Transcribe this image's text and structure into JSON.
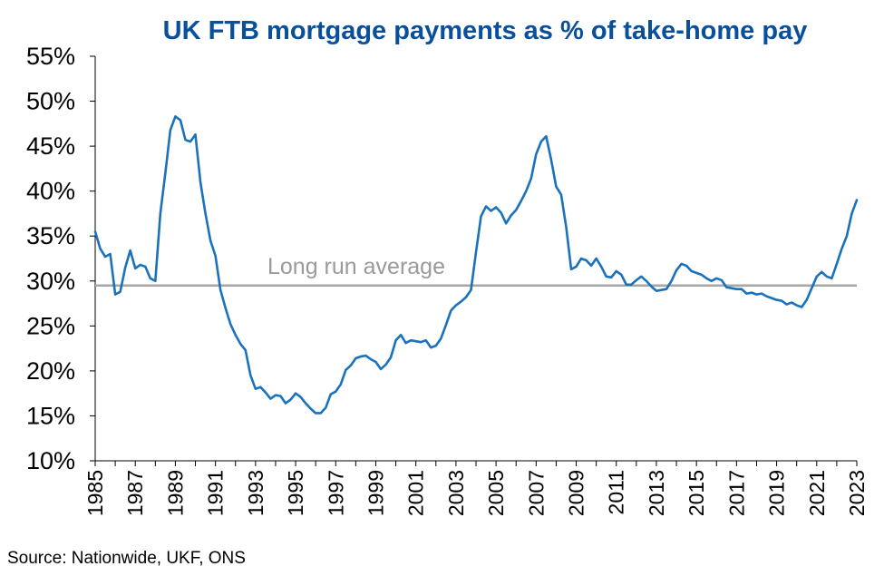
{
  "chart_data": {
    "type": "line",
    "title": "UK FTB mortgage payments as % of take-home pay",
    "source": "Source: Nationwide, UKF, ONS",
    "annotation": "Long run average",
    "average_value": 29.5,
    "xlim": [
      1985,
      2023
    ],
    "ylim": [
      10,
      55
    ],
    "y_ticks": [
      "10%",
      "15%",
      "20%",
      "25%",
      "30%",
      "35%",
      "40%",
      "45%",
      "50%",
      "55%"
    ],
    "y_tick_values": [
      10,
      15,
      20,
      25,
      30,
      35,
      40,
      45,
      50,
      55
    ],
    "x_ticks": [
      "1985",
      "1987",
      "1989",
      "1991",
      "1993",
      "1995",
      "1997",
      "1999",
      "2001",
      "2003",
      "2005",
      "2007",
      "2009",
      "2011",
      "2013",
      "2015",
      "2017",
      "2019",
      "2021",
      "2023"
    ],
    "x_tick_values": [
      1985,
      1987,
      1989,
      1991,
      1993,
      1995,
      1997,
      1999,
      2001,
      2003,
      2005,
      2007,
      2009,
      2011,
      2013,
      2015,
      2017,
      2019,
      2021,
      2023
    ],
    "colors": {
      "series": "#1a72bd",
      "average": "#a6a6a6",
      "title": "#0a4f9a"
    },
    "series": [
      {
        "x": [
          1985.0,
          1985.25,
          1985.5,
          1985.75,
          1986.0,
          1986.25,
          1986.5,
          1986.75,
          1987.0,
          1987.25,
          1987.5,
          1987.75,
          1988.0,
          1988.25,
          1988.5,
          1988.75,
          1989.0,
          1989.25,
          1989.5,
          1989.75,
          1990.0,
          1990.25,
          1990.5,
          1990.75,
          1991.0,
          1991.25,
          1991.5,
          1991.75,
          1992.0,
          1992.25,
          1992.5,
          1992.75,
          1993.0,
          1993.25,
          1993.5,
          1993.75,
          1994.0,
          1994.25,
          1994.5,
          1994.75,
          1995.0,
          1995.25,
          1995.5,
          1995.75,
          1996.0,
          1996.25,
          1996.5,
          1996.75,
          1997.0,
          1997.25,
          1997.5,
          1997.75,
          1998.0,
          1998.25,
          1998.5,
          1998.75,
          1999.0,
          1999.25,
          1999.5,
          1999.75,
          2000.0,
          2000.25,
          2000.5,
          2000.75,
          2001.0,
          2001.25,
          2001.5,
          2001.75,
          2002.0,
          2002.25,
          2002.5,
          2002.75,
          2003.0,
          2003.25,
          2003.5,
          2003.75,
          2004.0,
          2004.25,
          2004.5,
          2004.75,
          2005.0,
          2005.25,
          2005.5,
          2005.75,
          2006.0,
          2006.25,
          2006.5,
          2006.75,
          2007.0,
          2007.25,
          2007.5,
          2007.75,
          2008.0,
          2008.25,
          2008.5,
          2008.75,
          2009.0,
          2009.25,
          2009.5,
          2009.75,
          2010.0,
          2010.25,
          2010.5,
          2010.75,
          2011.0,
          2011.25,
          2011.5,
          2011.75,
          2012.0,
          2012.25,
          2012.5,
          2012.75,
          2013.0,
          2013.25,
          2013.5,
          2013.75,
          2014.0,
          2014.25,
          2014.5,
          2014.75,
          2015.0,
          2015.25,
          2015.5,
          2015.75,
          2016.0,
          2016.25,
          2016.5,
          2016.75,
          2017.0,
          2017.25,
          2017.5,
          2017.75,
          2018.0,
          2018.25,
          2018.5,
          2018.75,
          2019.0,
          2019.25,
          2019.5,
          2019.75,
          2020.0,
          2020.25,
          2020.5,
          2020.75,
          2021.0,
          2021.25,
          2021.5,
          2021.75,
          2022.0,
          2022.25,
          2022.5,
          2022.75,
          2023.0
        ],
        "values": [
          35.5,
          33.6,
          32.7,
          33.0,
          28.5,
          28.8,
          31.5,
          33.4,
          31.4,
          31.8,
          31.6,
          30.3,
          30.0,
          37.5,
          42.0,
          46.8,
          48.3,
          47.9,
          45.7,
          45.5,
          46.3,
          41.0,
          37.5,
          34.5,
          32.8,
          29.0,
          27.0,
          25.2,
          24.0,
          23.0,
          22.3,
          19.5,
          18.0,
          18.2,
          17.6,
          16.9,
          17.3,
          17.2,
          16.4,
          16.8,
          17.5,
          17.1,
          16.4,
          15.8,
          15.3,
          15.3,
          15.9,
          17.4,
          17.7,
          18.5,
          20.1,
          20.6,
          21.4,
          21.6,
          21.7,
          21.3,
          21.0,
          20.2,
          20.7,
          21.5,
          23.4,
          24.0,
          23.1,
          23.4,
          23.3,
          23.2,
          23.4,
          22.6,
          22.8,
          23.6,
          25.1,
          26.7,
          27.3,
          27.7,
          28.2,
          29.0,
          33.2,
          37.2,
          38.3,
          37.8,
          38.2,
          37.6,
          36.4,
          37.3,
          37.9,
          38.9,
          40.0,
          41.4,
          44.1,
          45.5,
          46.1,
          43.5,
          40.5,
          39.6,
          36.0,
          31.3,
          31.6,
          32.5,
          32.3,
          31.7,
          32.5,
          31.6,
          30.5,
          30.4,
          31.1,
          30.7,
          29.6,
          29.6,
          30.1,
          30.5,
          30.0,
          29.4,
          28.9,
          29.0,
          29.1,
          30.0,
          31.2,
          31.9,
          31.7,
          31.1,
          30.9,
          30.7,
          30.3,
          30.0,
          30.3,
          30.1,
          29.3,
          29.2,
          29.1,
          29.1,
          28.6,
          28.7,
          28.5,
          28.6,
          28.3,
          28.1,
          27.9,
          27.8,
          27.4,
          27.6,
          27.3,
          27.1,
          27.9,
          29.2,
          30.5,
          31.0,
          30.5,
          30.3,
          31.9,
          33.6,
          35.0,
          37.5,
          39.0
        ]
      }
    ]
  }
}
